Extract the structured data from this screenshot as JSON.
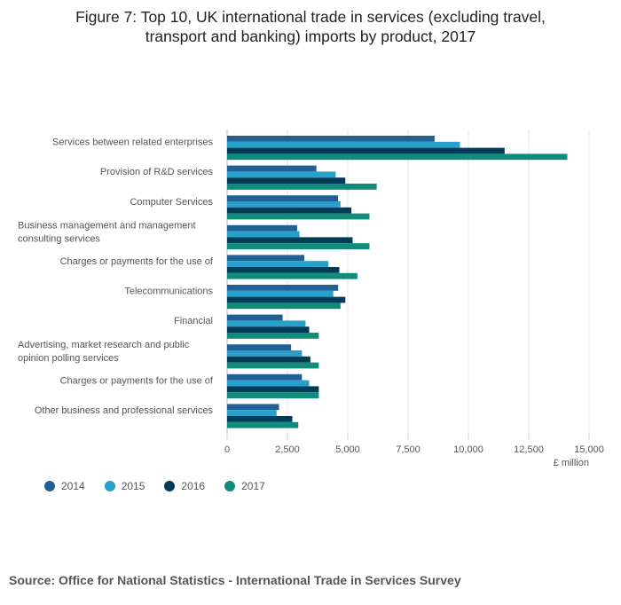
{
  "chart_data": {
    "type": "bar",
    "orientation": "horizontal",
    "title": "Figure 7: Top 10, UK international trade in services (excluding travel, transport and banking) imports by product, 2017",
    "title_lines": [
      "Figure 7: Top 10, UK international trade in services (excluding travel,",
      "transport and banking) imports by product, 2017"
    ],
    "xlabel": "£ million",
    "ylabel": "",
    "xlim": [
      0,
      15000
    ],
    "x_ticks": [
      0,
      2500,
      5000,
      7500,
      10000,
      12500,
      15000
    ],
    "x_tick_labels": [
      "0",
      "2,500",
      "5,000",
      "7,500",
      "10,000",
      "12,500",
      "15,000"
    ],
    "grid": true,
    "legend_position": "bottom-left",
    "categories": [
      "Services between related enterprises",
      "Provision of R&D services",
      "Computer Services",
      "Business management and management consulting services",
      "Charges or payments for the use of",
      "Telecommunications",
      "Financial",
      "Advertising, market research and public opinion polling services",
      "Charges or payments for the use of",
      "Other business and professional services"
    ],
    "category_label_lines": [
      [
        "Services between related enterprises"
      ],
      [
        "Provision of R&D services"
      ],
      [
        "Computer Services"
      ],
      [
        "Business management and management",
        "consulting services"
      ],
      [
        "Charges or payments for the use of"
      ],
      [
        "Telecommunications"
      ],
      [
        "Financial"
      ],
      [
        "Advertising, market research and public",
        "opinion polling services"
      ],
      [
        "Charges or payments for the use of"
      ],
      [
        "Other business and professional services"
      ]
    ],
    "series": [
      {
        "name": "2014",
        "color": "#206095",
        "values": [
          8600,
          3700,
          4600,
          2900,
          3200,
          4600,
          2300,
          2650,
          3100,
          2150
        ]
      },
      {
        "name": "2015",
        "color": "#27a0cc",
        "values": [
          9650,
          4500,
          4700,
          3000,
          4200,
          4400,
          3250,
          3100,
          3400,
          2050
        ]
      },
      {
        "name": "2016",
        "color": "#003c57",
        "values": [
          11500,
          4900,
          5150,
          5200,
          4650,
          4900,
          3400,
          3450,
          3800,
          2700
        ]
      },
      {
        "name": "2017",
        "color": "#118c7b",
        "values": [
          14100,
          6200,
          5900,
          5900,
          5400,
          4700,
          3800,
          3800,
          3800,
          2950
        ]
      }
    ]
  },
  "source_note": "Source: Office for National Statistics - International Trade in Services Survey"
}
